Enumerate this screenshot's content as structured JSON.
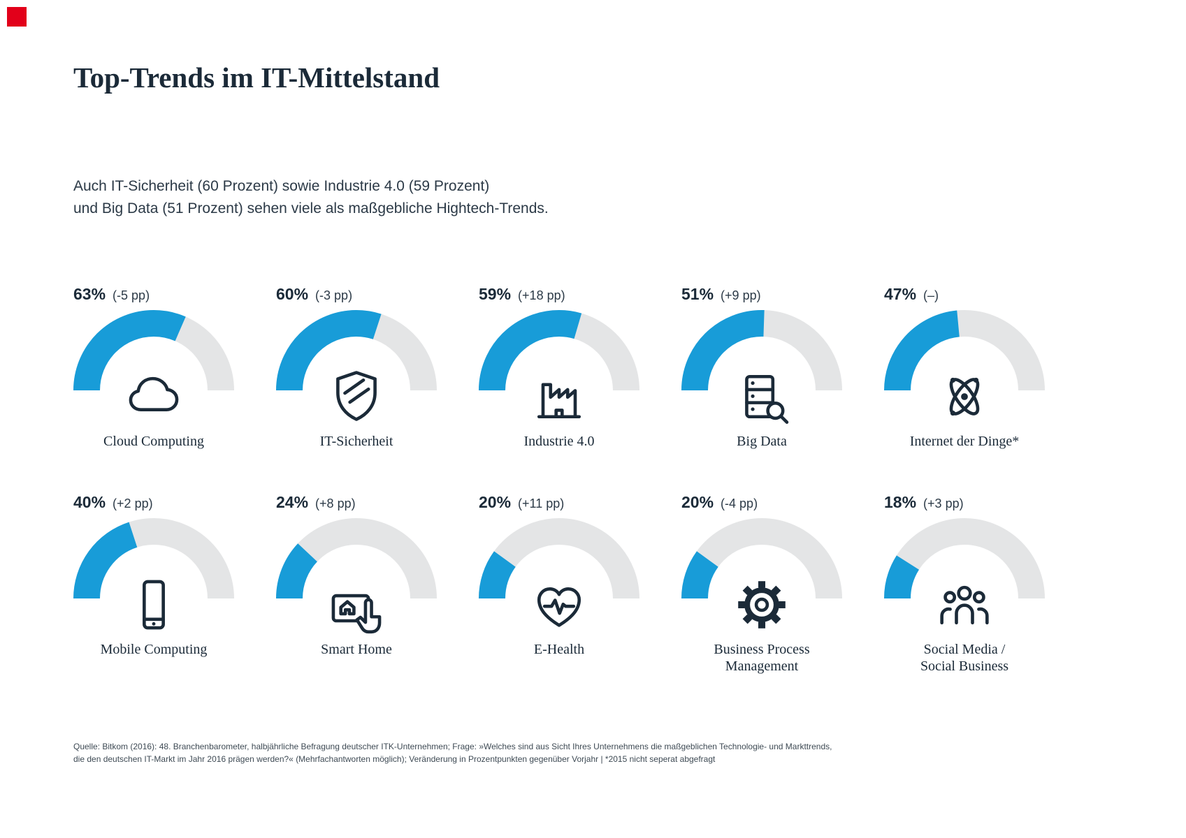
{
  "brand": {
    "logo_color": "#e2001a"
  },
  "title": "Top-Trends im IT-Mittelstand",
  "subtitle_lines": [
    "Auch IT-Sicherheit (60 Prozent) sowie Industrie 4.0 (59 Prozent)",
    "und Big Data (51 Prozent) sehen viele als maßgebliche Hightech-Trends."
  ],
  "chart_data": {
    "type": "gauge-grid",
    "unit": "%",
    "gauge_range": [
      0,
      100
    ],
    "colors": {
      "value_arc": "#189cd8",
      "track_arc": "#e4e5e6"
    },
    "gauges": [
      {
        "label": "Cloud Computing",
        "value": 63,
        "change": "(-5 pp)",
        "icon": "cloud-icon"
      },
      {
        "label": "IT-Sicherheit",
        "value": 60,
        "change": "(-3 pp)",
        "icon": "shield-icon"
      },
      {
        "label": "Industrie 4.0",
        "value": 59,
        "change": "(+18 pp)",
        "icon": "factory-icon"
      },
      {
        "label": "Big Data",
        "value": 51,
        "change": "(+9 pp)",
        "icon": "server-search-icon"
      },
      {
        "label": "Internet der Dinge*",
        "value": 47,
        "change": "(–)",
        "icon": "atom-icon"
      },
      {
        "label": "Mobile Computing",
        "value": 40,
        "change": "(+2 pp)",
        "icon": "smartphone-icon"
      },
      {
        "label": "Smart Home",
        "value": 24,
        "change": "(+8 pp)",
        "icon": "smart-home-icon"
      },
      {
        "label": "E-Health",
        "value": 20,
        "change": "(+11 pp)",
        "icon": "heart-pulse-icon"
      },
      {
        "label": "Business Process\nManagement",
        "value": 20,
        "change": "(-4 pp)",
        "icon": "gear-icon"
      },
      {
        "label": "Social Media /\nSocial Business",
        "value": 18,
        "change": "(+3 pp)",
        "icon": "people-icon"
      }
    ]
  },
  "footer_lines": [
    "Quelle: Bitkom (2016): 48. Branchenbarometer, halbjährliche Befragung deutscher ITK-Unternehmen; Frage: »Welches sind aus Sicht Ihres Unternehmens die maßgeblichen Technologie- und Markttrends,",
    "die den deutschen IT-Markt im Jahr 2016 prägen werden?« (Mehrfachantworten möglich); Veränderung in Prozentpunkten gegenüber Vorjahr | *2015 nicht seperat abgefragt"
  ]
}
